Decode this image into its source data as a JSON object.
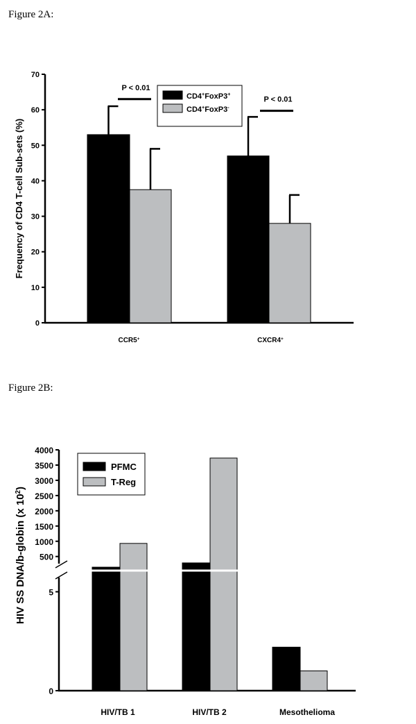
{
  "figure_a_title": "Figure 2A:",
  "figure_b_title": "Figure 2B:",
  "colors": {
    "black": "#000000",
    "gray": "#bcbec0"
  },
  "chart_data": [
    {
      "type": "bar",
      "title": "Figure 2A:",
      "ylabel": "Frequency of CD4 T-cell Sub-sets (%)",
      "ylim": [
        0,
        70
      ],
      "yticks": [
        "0",
        "10",
        "20",
        "30",
        "40",
        "50",
        "60",
        "70"
      ],
      "categories": [
        {
          "text": "CCR5",
          "sup": "+"
        },
        {
          "text": "CXCR4",
          "sup": "+"
        }
      ],
      "series": [
        {
          "name": "CD4+FoxP3+",
          "label": "CD4",
          "label_sup": "+",
          "label2": "FoxP3",
          "label2_sup": "+",
          "color": "#000000",
          "values": [
            53,
            47
          ],
          "error_upper": [
            61,
            58
          ]
        },
        {
          "name": "CD4+FoxP3-",
          "label": "CD4",
          "label_sup": "+",
          "label2": "FoxP3",
          "label2_sup": "-",
          "color": "#bcbec0",
          "values": [
            37.5,
            28
          ],
          "error_upper": [
            49,
            36
          ]
        }
      ],
      "annotations": [
        {
          "text": "P < 0.01",
          "category": 0,
          "y": 63
        },
        {
          "text": "P < 0.01",
          "category": 1,
          "y": 59.7
        }
      ],
      "legend": "top-center"
    },
    {
      "type": "bar",
      "title": "Figure 2B:",
      "ylabel": "HIV SS DNA/b-globin (x 10",
      "ylabel_sup": "2",
      "ylabel_end": ")",
      "axis_break": true,
      "lower_ylim": [
        0,
        5
      ],
      "upper_ylim": [
        500,
        4000
      ],
      "lower_yticks": [
        "0",
        "5"
      ],
      "upper_yticks": [
        "500",
        "1000",
        "1500",
        "2000",
        "2500",
        "3000",
        "3500",
        "4000"
      ],
      "categories": [
        {
          "text": "HIV/TB 1"
        },
        {
          "text": "HIV/TB 2"
        },
        {
          "text": "Mesothelioma"
        }
      ],
      "series": [
        {
          "name": "PFMC",
          "color": "#000000",
          "values": [
            150,
            290,
            2.2
          ]
        },
        {
          "name": "T-Reg",
          "color": "#bcbec0",
          "values": [
            930,
            3730,
            1.0
          ]
        }
      ],
      "legend": "top-left"
    }
  ]
}
